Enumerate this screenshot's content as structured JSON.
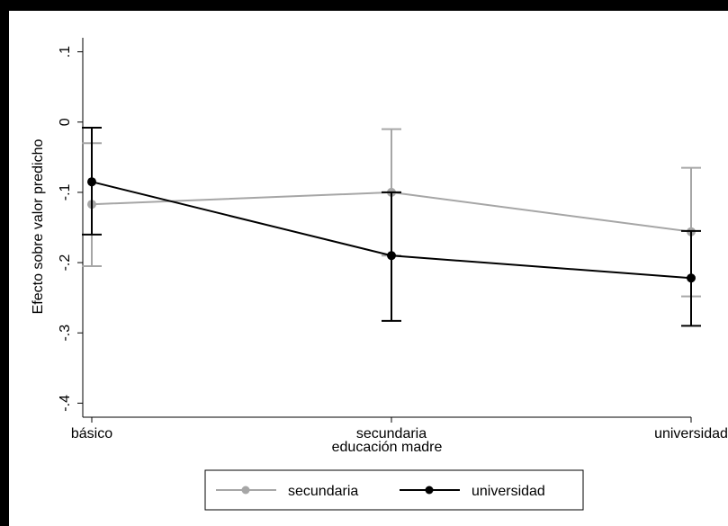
{
  "chart_data": {
    "type": "line",
    "title": "",
    "xlabel": "educación madre",
    "ylabel": "Efecto sobre valor predicho",
    "categories": [
      "básico",
      "secundaria",
      "universidad"
    ],
    "ylim": [
      -0.42,
      0.12
    ],
    "yticks": [
      0.1,
      0,
      -0.1,
      -0.2,
      -0.3,
      -0.4
    ],
    "ytick_labels": [
      ".1",
      "0",
      "-.1",
      "-.2",
      "-.3",
      "-.4"
    ],
    "series": [
      {
        "name": "secundaria",
        "color": "#a6a6a6",
        "values": [
          -0.117,
          -0.1,
          -0.156
        ],
        "ci_low": [
          -0.205,
          -0.19,
          -0.248
        ],
        "ci_high": [
          -0.03,
          -0.01,
          -0.065
        ]
      },
      {
        "name": "universidad",
        "color": "#000000",
        "values": [
          -0.085,
          -0.19,
          -0.222
        ],
        "ci_low": [
          -0.16,
          -0.283,
          -0.29
        ],
        "ci_high": [
          -0.008,
          -0.1,
          -0.155
        ]
      }
    ],
    "grid": false,
    "legend_position": "bottom",
    "error_bars": true
  }
}
